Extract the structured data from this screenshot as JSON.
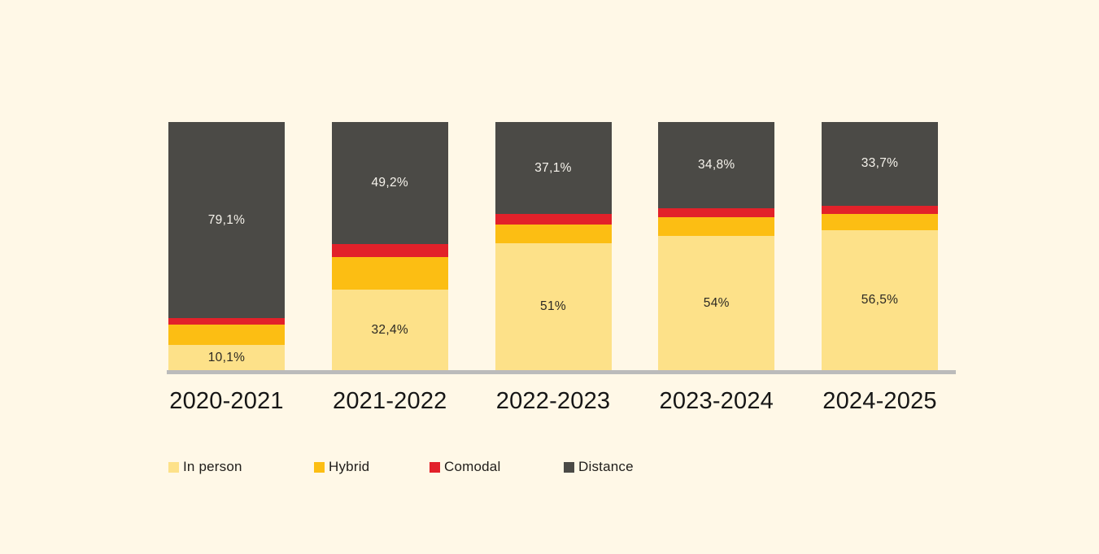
{
  "background_color": "#FFF8E7",
  "chart_data": {
    "type": "bar",
    "stacked": true,
    "stack_total_percent": 100,
    "unit": "%",
    "title": "",
    "xlabel": "",
    "ylabel": "",
    "grid": false,
    "baseline_color": "#BBBBBB",
    "categories": [
      "2020-2021",
      "2021-2022",
      "2022-2023",
      "2023-2024",
      "2024-2025"
    ],
    "series": [
      {
        "name": "In person",
        "color": "#FDE189",
        "labeled": true,
        "values": [
          10.1,
          32.4,
          51,
          54,
          56.5
        ],
        "value_labels": [
          "10,1%",
          "32,4%",
          "51%",
          "54%",
          "56,5%"
        ]
      },
      {
        "name": "Hybrid",
        "color": "#FCBE13",
        "labeled": false,
        "values": [
          8.1,
          13.2,
          7.6,
          7.6,
          6.4
        ]
      },
      {
        "name": "Comodal",
        "color": "#E2212A",
        "labeled": false,
        "values": [
          2.7,
          5.2,
          4.3,
          3.6,
          3.4
        ]
      },
      {
        "name": "Distance",
        "color": "#4B4A46",
        "labeled": true,
        "values": [
          79.1,
          49.2,
          37.1,
          34.8,
          33.7
        ],
        "value_labels": [
          "79,1%",
          "49,2%",
          "37,1%",
          "34,8%",
          "33,7%"
        ]
      }
    ],
    "legend": {
      "position": "bottom-left",
      "entries": [
        "In person",
        "Hybrid",
        "Comodal",
        "Distance"
      ]
    }
  }
}
